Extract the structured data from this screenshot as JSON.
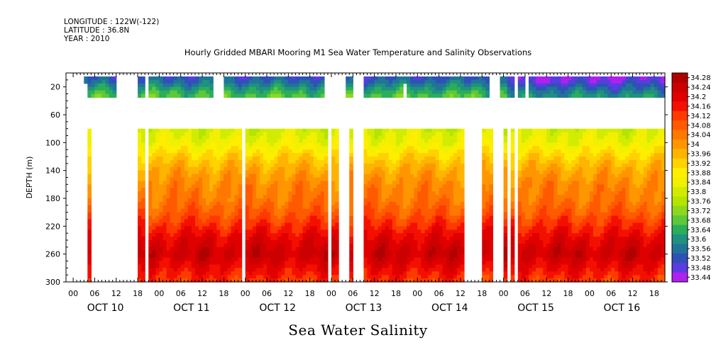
{
  "header": {
    "longitude": "LONGITUDE : 122W(-122)",
    "latitude": "LATITUDE : 36.8N",
    "year": "YEAR : 2010"
  },
  "chart_data": {
    "type": "heatmap",
    "title": "Hourly Gridded MBARI Mooring M1 Sea Water Temperature and Salinity Observations",
    "bottom_title": "Sea Water Salinity",
    "ylabel": "DEPTH (m)",
    "y_range": [
      0,
      300
    ],
    "y_inverted": true,
    "y_ticks": [
      20,
      60,
      100,
      140,
      180,
      220,
      260,
      300
    ],
    "x_range_hours": [
      -2,
      165
    ],
    "x_hour_ticks": [
      "00",
      "06",
      "12",
      "18",
      "00",
      "06",
      "12",
      "18",
      "00",
      "06",
      "12",
      "18",
      "00",
      "06",
      "12",
      "18",
      "00",
      "06",
      "12",
      "18",
      "00",
      "06",
      "12",
      "18",
      "00",
      "06",
      "12",
      "18"
    ],
    "date_labels": [
      "OCT 10",
      "OCT 11",
      "OCT 12",
      "OCT 13",
      "OCT 14",
      "OCT 15",
      "OCT 16"
    ],
    "colorbar": {
      "levels": [
        "34.28",
        "34.24",
        "34.2",
        "34.16",
        "34.12",
        "34.08",
        "34.04",
        "34",
        "33.96",
        "33.92",
        "33.88",
        "33.84",
        "33.8",
        "33.76",
        "33.72",
        "33.68",
        "33.64",
        "33.6",
        "33.56",
        "33.52",
        "33.48",
        "33.44"
      ],
      "colors": [
        "#b00000",
        "#cc0000",
        "#e00000",
        "#f41000",
        "#ff3a00",
        "#ff5a00",
        "#ff7800",
        "#ff9600",
        "#ffb400",
        "#ffd200",
        "#ffee00",
        "#f0f000",
        "#d2ec00",
        "#b4e400",
        "#8cd820",
        "#5cc83a",
        "#2aae5a",
        "#209080",
        "#207498",
        "#3050b8",
        "#5a3ce0",
        "#b020f0"
      ]
    },
    "depth_profile": [
      {
        "depth": 10,
        "salinity": 33.55
      },
      {
        "depth": 20,
        "salinity": 33.62
      },
      {
        "depth": 30,
        "salinity": 33.68
      },
      {
        "depth": 80,
        "salinity": 33.82
      },
      {
        "depth": 100,
        "salinity": 33.86
      },
      {
        "depth": 120,
        "salinity": 33.94
      },
      {
        "depth": 140,
        "salinity": 34.0
      },
      {
        "depth": 160,
        "salinity": 34.04
      },
      {
        "depth": 180,
        "salinity": 34.06
      },
      {
        "depth": 200,
        "salinity": 34.1
      },
      {
        "depth": 220,
        "salinity": 34.16
      },
      {
        "depth": 240,
        "salinity": 34.22
      },
      {
        "depth": 260,
        "salinity": 34.26
      },
      {
        "depth": 280,
        "salinity": 34.2
      },
      {
        "depth": 300,
        "salinity": 34.14
      }
    ],
    "surface_band_depth": [
      5,
      35
    ],
    "deep_band_depth": [
      80,
      300
    ],
    "surface_gaps_hours": [
      [
        -2,
        3
      ],
      [
        12,
        17.5
      ],
      [
        18.5,
        19
      ],
      [
        19.5,
        21
      ],
      [
        38.5,
        41.5
      ],
      [
        69.5,
        75.5
      ],
      [
        78,
        81
      ],
      [
        116,
        119
      ],
      [
        123,
        124
      ],
      [
        126,
        127
      ]
    ],
    "surface_short_hours": [
      [
        3,
        4
      ],
      [
        40,
        41
      ],
      [
        78,
        81
      ],
      [
        92,
        93
      ]
    ],
    "deep_gaps_hours": [
      [
        -2,
        4
      ],
      [
        5,
        18
      ],
      [
        18.5,
        19
      ],
      [
        19.5,
        21
      ],
      [
        47,
        48
      ],
      [
        71,
        72
      ],
      [
        74,
        77
      ],
      [
        78,
        81
      ],
      [
        109,
        114
      ],
      [
        117,
        120
      ],
      [
        121,
        122
      ],
      [
        123,
        124
      ]
    ]
  }
}
